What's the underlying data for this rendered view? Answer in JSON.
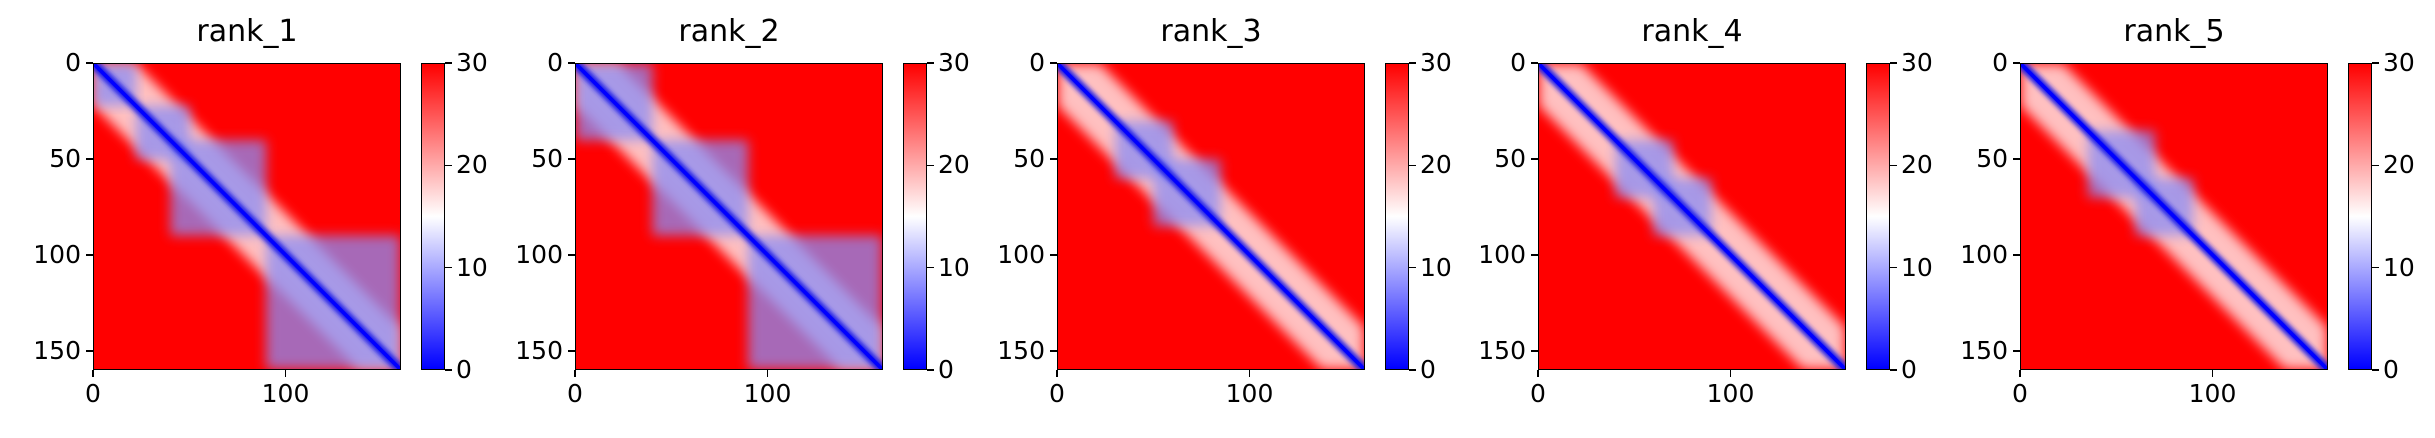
{
  "chart_data": [
    {
      "type": "heatmap",
      "title": "rank_1",
      "colormap": "bwr",
      "x_ticks": [
        "0",
        "100"
      ],
      "y_ticks": [
        "0",
        "50",
        "100",
        "150"
      ],
      "colorbar_ticks": [
        "0",
        "10",
        "20",
        "30"
      ],
      "vmin": 0,
      "vmax": 30,
      "matrix_size": 160,
      "diagonal_domains": [
        [
          0,
          22
        ],
        [
          22,
          50
        ],
        [
          40,
          90
        ],
        [
          90,
          160
        ]
      ]
    },
    {
      "type": "heatmap",
      "title": "rank_2",
      "colormap": "bwr",
      "x_ticks": [
        "0",
        "100"
      ],
      "y_ticks": [
        "0",
        "50",
        "100",
        "150"
      ],
      "colorbar_ticks": [
        "0",
        "10",
        "20",
        "30"
      ],
      "vmin": 0,
      "vmax": 30,
      "matrix_size": 160,
      "diagonal_domains": [
        [
          0,
          40
        ],
        [
          40,
          90
        ],
        [
          90,
          160
        ]
      ]
    },
    {
      "type": "heatmap",
      "title": "rank_3",
      "colormap": "bwr",
      "x_ticks": [
        "0",
        "100"
      ],
      "y_ticks": [
        "0",
        "50",
        "100",
        "150"
      ],
      "colorbar_ticks": [
        "0",
        "10",
        "20",
        "30"
      ],
      "vmin": 0,
      "vmax": 30,
      "matrix_size": 160,
      "diagonal_domains": [
        [
          30,
          60
        ],
        [
          50,
          85
        ]
      ]
    },
    {
      "type": "heatmap",
      "title": "rank_4",
      "colormap": "bwr",
      "x_ticks": [
        "0",
        "100"
      ],
      "y_ticks": [
        "0",
        "50",
        "100",
        "150"
      ],
      "colorbar_ticks": [
        "0",
        "10",
        "20",
        "30"
      ],
      "vmin": 0,
      "vmax": 30,
      "matrix_size": 160,
      "diagonal_domains": [
        [
          40,
          70
        ],
        [
          60,
          90
        ]
      ]
    },
    {
      "type": "heatmap",
      "title": "rank_5",
      "colormap": "bwr",
      "x_ticks": [
        "0",
        "100"
      ],
      "y_ticks": [
        "0",
        "50",
        "100",
        "150"
      ],
      "colorbar_ticks": [
        "0",
        "10",
        "20",
        "30"
      ],
      "vmin": 0,
      "vmax": 30,
      "matrix_size": 160,
      "diagonal_domains": [
        [
          35,
          70
        ],
        [
          60,
          90
        ]
      ]
    }
  ],
  "colors": {
    "low": "#0000ff",
    "mid": "#ffffff",
    "high": "#ff0000"
  }
}
